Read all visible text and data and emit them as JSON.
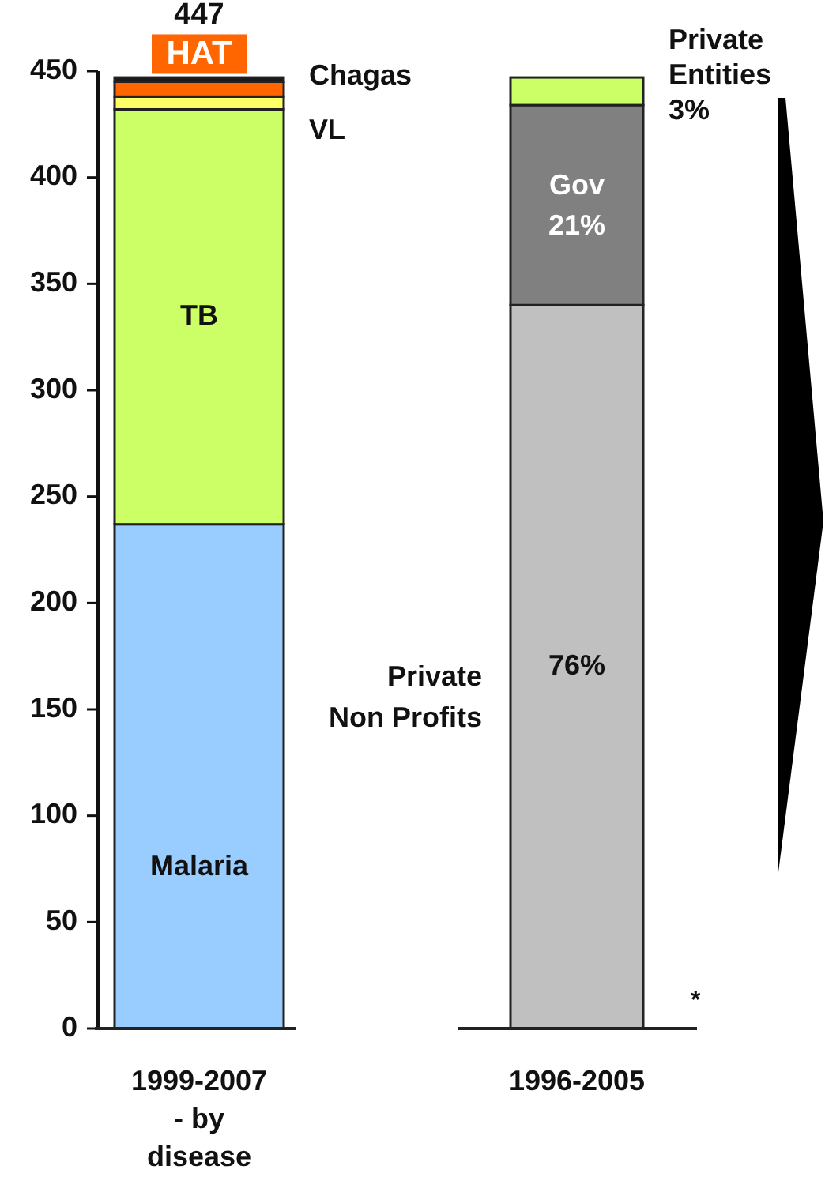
{
  "chart_data": {
    "type": "bar",
    "stacked": true,
    "categories": [
      "1999-2007 - by disease",
      "1996-2005"
    ],
    "ylim": [
      0,
      450
    ],
    "yticks": [
      0,
      50,
      100,
      150,
      200,
      250,
      300,
      350,
      400,
      450
    ],
    "series": [
      {
        "name": "Malaria",
        "color": "#99ccff",
        "values": [
          237,
          null
        ]
      },
      {
        "name": "TB",
        "color": "#ccff66",
        "values": [
          195,
          null
        ]
      },
      {
        "name": "VL",
        "color": "#ffff66",
        "values": [
          6,
          null
        ]
      },
      {
        "name": "HAT",
        "color": "#ff6600",
        "values": [
          7,
          null
        ]
      },
      {
        "name": "Chagas",
        "color": "#1a1a1a",
        "values": [
          2,
          null
        ]
      },
      {
        "name": "Private Non Profits",
        "color": "#c0c0c0",
        "values": [
          null,
          340
        ]
      },
      {
        "name": "Gov",
        "color": "#808080",
        "values": [
          null,
          94
        ]
      },
      {
        "name": "Private Entities",
        "color": "#ccff66",
        "values": [
          null,
          13
        ]
      }
    ],
    "totals": [
      "447",
      null
    ],
    "annotations": [
      "76%",
      "21%",
      "3%",
      "*"
    ]
  }
}
